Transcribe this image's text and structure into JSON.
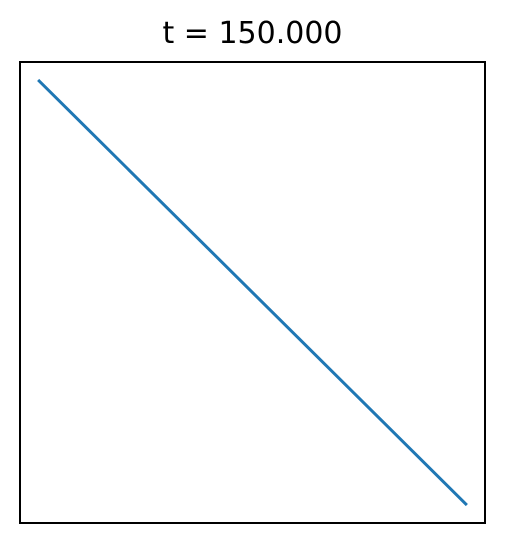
{
  "chart_data": {
    "type": "line",
    "title": "t = 150.000",
    "xlabel": "",
    "ylabel": "",
    "axes_ticks_visible": false,
    "grid": false,
    "legend": "none",
    "xlim": [
      0,
      1
    ],
    "ylim": [
      0,
      1
    ],
    "series": [
      {
        "color": "#1f77b4",
        "x": [
          0.0,
          1.0
        ],
        "y": [
          1.0,
          0.0
        ]
      }
    ]
  }
}
